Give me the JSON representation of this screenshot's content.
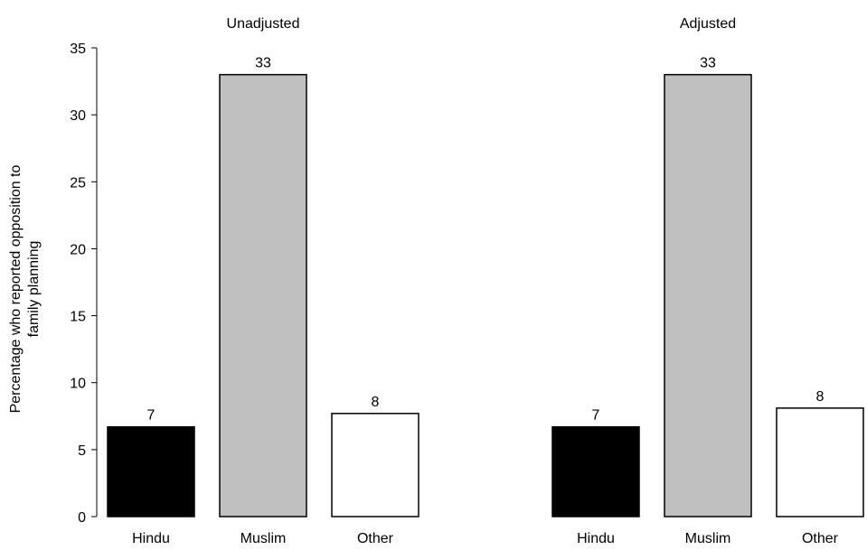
{
  "chart_data": {
    "type": "bar",
    "ylabel_lines": [
      "Percentage who reported opposition to",
      "family planning"
    ],
    "ylim": [
      0,
      35
    ],
    "yticks": [
      0,
      5,
      10,
      15,
      20,
      25,
      30,
      35
    ],
    "categories": [
      "Hindu",
      "Muslim",
      "Other"
    ],
    "bar_colors": [
      "#000000",
      "#c0c0c0",
      "#ffffff"
    ],
    "groups": [
      {
        "title": "Unadjusted",
        "values": [
          6.7,
          33,
          7.7
        ],
        "labels": [
          "7",
          "33",
          "8"
        ]
      },
      {
        "title": "Adjusted",
        "values": [
          6.7,
          33,
          8.1
        ],
        "labels": [
          "7",
          "33",
          "8"
        ]
      }
    ]
  }
}
